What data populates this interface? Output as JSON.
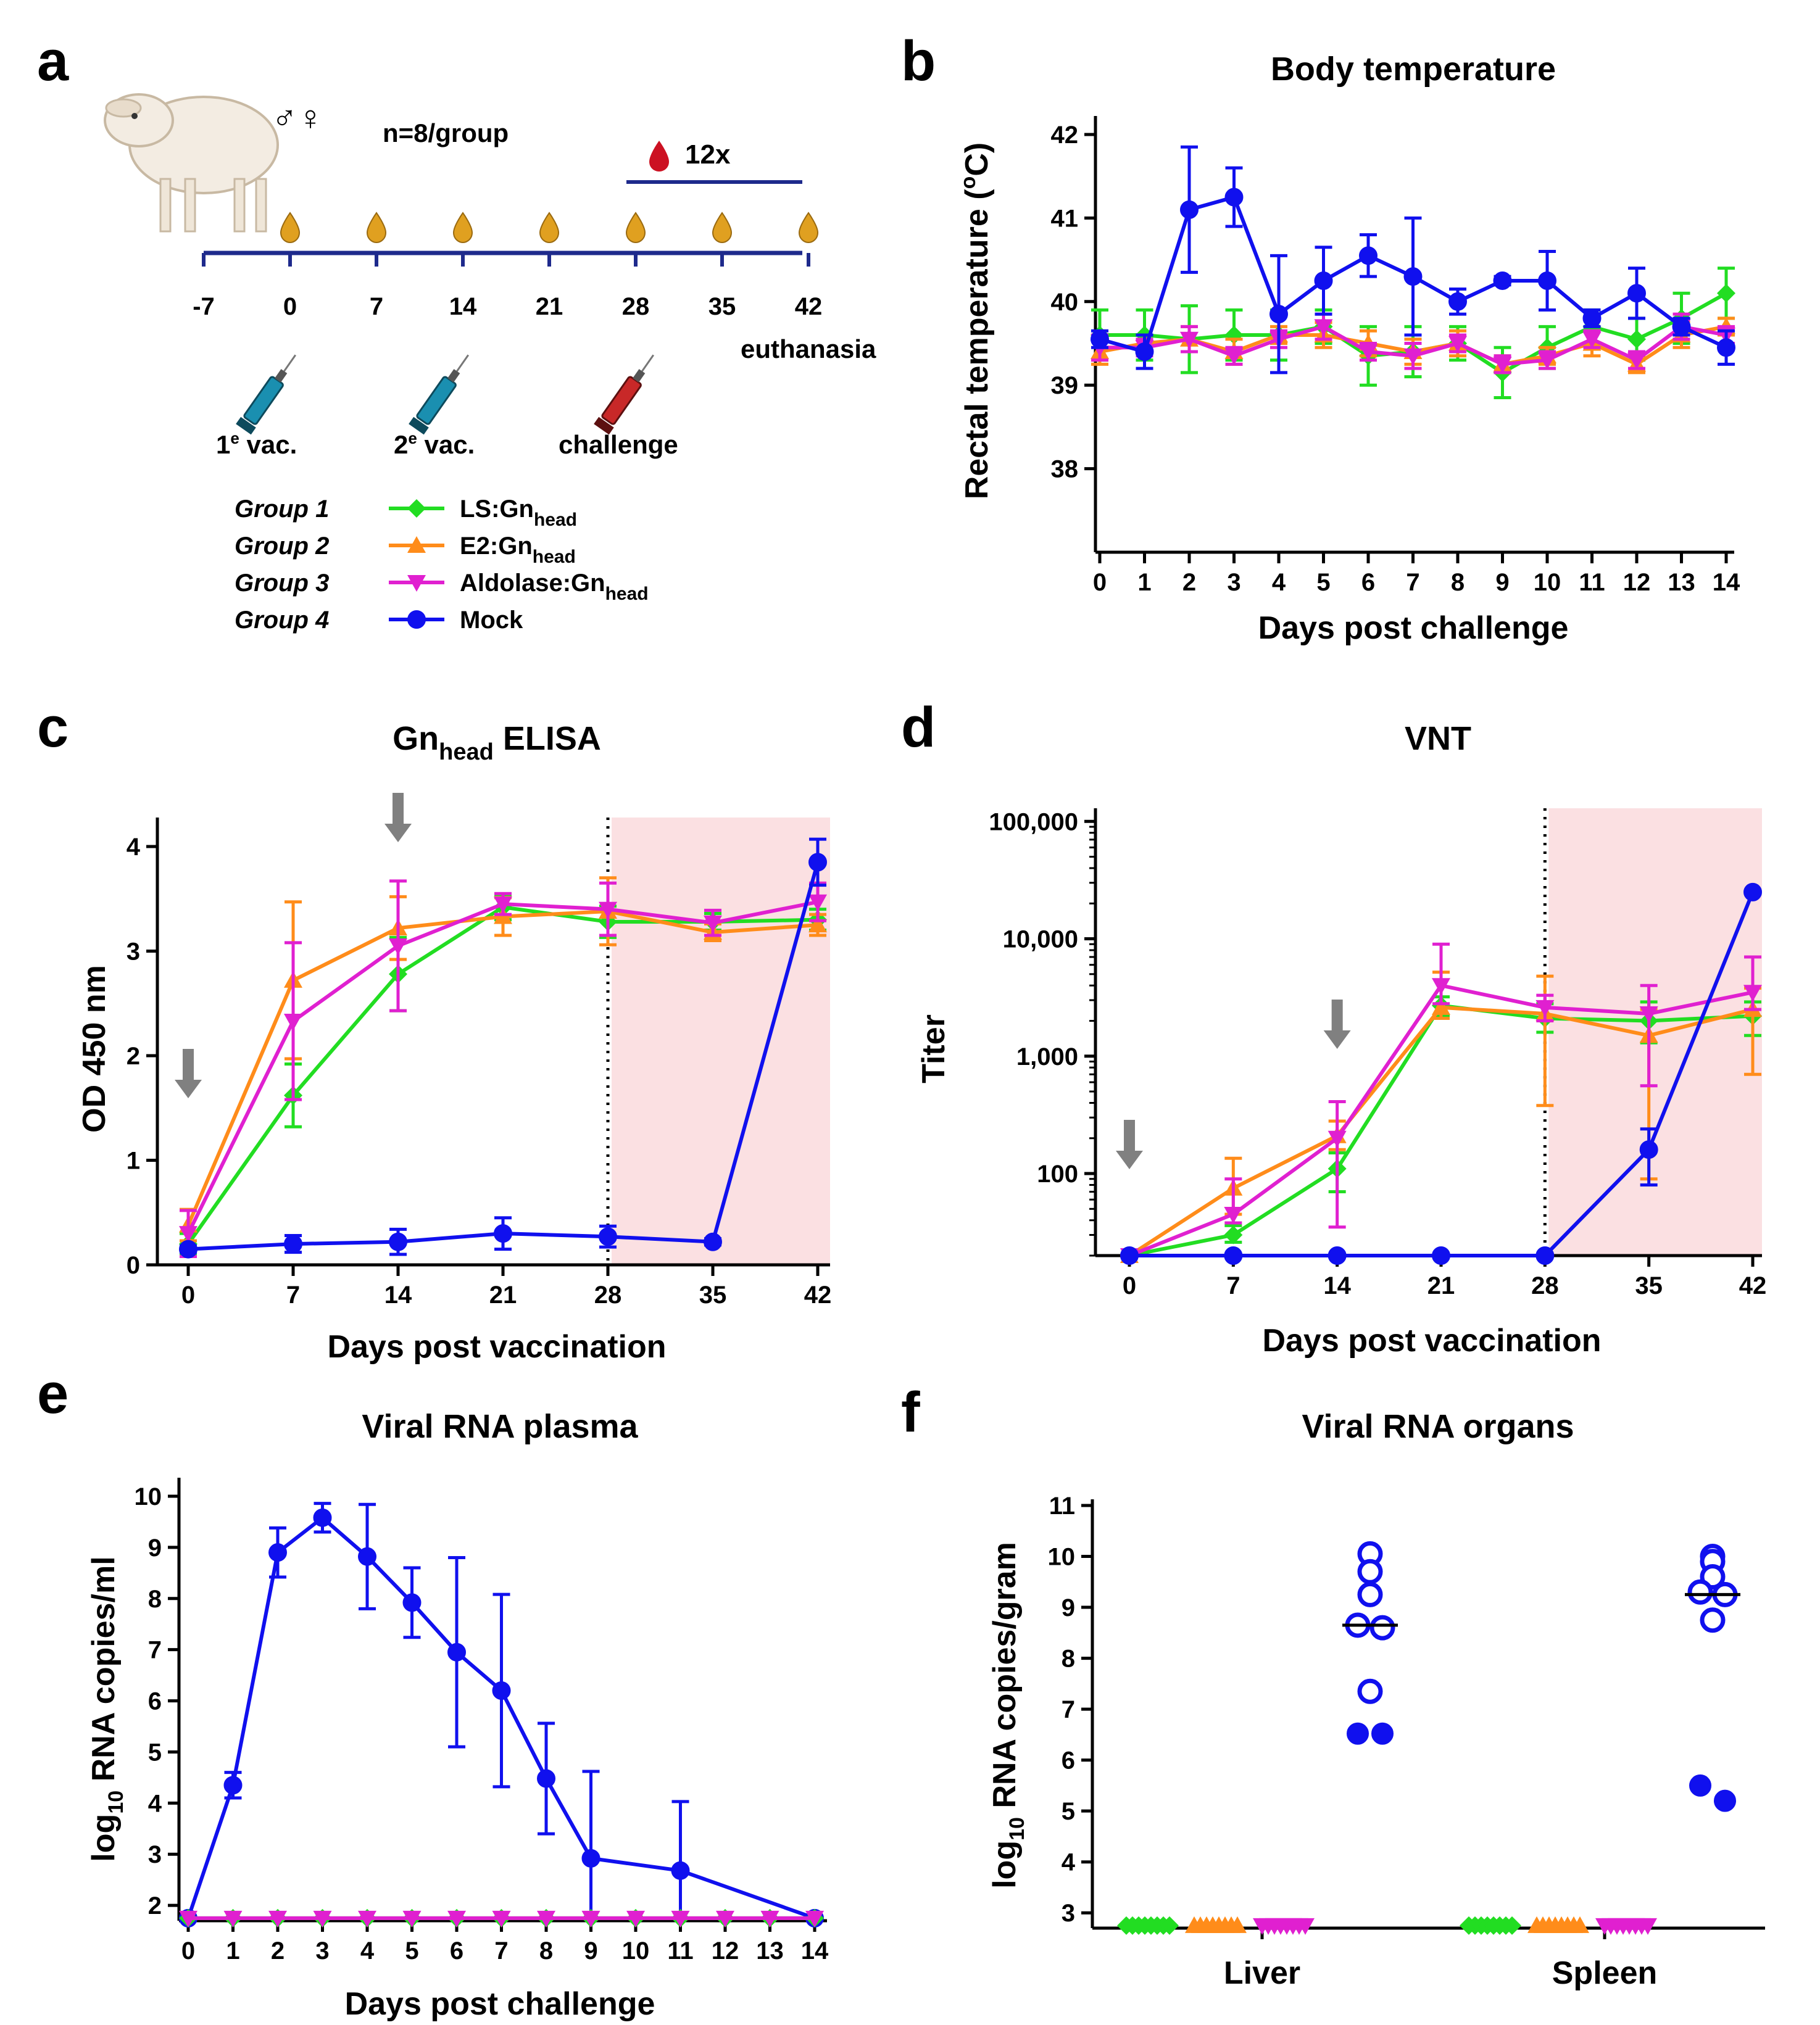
{
  "colors": {
    "ls": "#22dd22",
    "e2": "#ff8c1a",
    "ald": "#e020d0",
    "mock": "#1010ee",
    "timeline": "#1e2a8c",
    "shade": "#fbe0e2",
    "arrow": "#808080",
    "drop": "#e0a020",
    "blood": "#cc1122"
  },
  "panels": {
    "a": "a",
    "b": "b",
    "c": "c",
    "d": "d",
    "e": "e",
    "f": "f"
  },
  "schematic": {
    "sex": "♂♀",
    "n": "n=8/group",
    "blood": "12x",
    "days": [
      "-7",
      "0",
      "7",
      "14",
      "21",
      "28",
      "35",
      "42"
    ],
    "euthanasia": "euthanasia",
    "vac1_num": "1",
    "vac1_sup": "e",
    "vac1_rest": " vac.",
    "vac2_num": "2",
    "vac2_sup": "e",
    "vac2_rest": " vac.",
    "challenge": "challenge"
  },
  "legend": [
    {
      "group": "Group 1",
      "label": "LS:Gn",
      "sub": "head",
      "series": "ls"
    },
    {
      "group": "Group 2",
      "label": "E2:Gn",
      "sub": "head",
      "series": "e2"
    },
    {
      "group": "Group 3",
      "label": "Aldolase:Gn",
      "sub": "head",
      "series": "ald"
    },
    {
      "group": "Group 4",
      "label": "Mock",
      "sub": "",
      "series": "mock"
    }
  ],
  "chart_data": [
    {
      "id": "b",
      "type": "line",
      "title": "Body temperature",
      "xlabel": "Days post challenge",
      "ylabel_main": "Rectal temperature (",
      "ylabel_sup": "o",
      "ylabel_end": "C)",
      "x": [
        0,
        1,
        2,
        3,
        4,
        5,
        6,
        7,
        8,
        9,
        10,
        11,
        12,
        13,
        14
      ],
      "ylim": [
        37,
        42
      ],
      "yticks": [
        38,
        39,
        40,
        41,
        42
      ],
      "series": [
        {
          "name": "LS:Gnhead",
          "key": "ls",
          "values": [
            39.6,
            39.6,
            39.55,
            39.6,
            39.6,
            39.7,
            39.35,
            39.4,
            39.5,
            39.15,
            39.45,
            39.7,
            39.55,
            39.8,
            40.1
          ],
          "err": [
            0.3,
            0.3,
            0.4,
            0.3,
            0.3,
            0.2,
            0.35,
            0.3,
            0.2,
            0.3,
            0.25,
            0.2,
            0.25,
            0.3,
            0.3
          ]
        },
        {
          "name": "E2:Gnhead",
          "key": "e2",
          "values": [
            39.4,
            39.5,
            39.55,
            39.4,
            39.6,
            39.6,
            39.5,
            39.4,
            39.5,
            39.25,
            39.35,
            39.5,
            39.25,
            39.6,
            39.7
          ],
          "err": [
            0.15,
            0.1,
            0.15,
            0.15,
            0.1,
            0.15,
            0.15,
            0.15,
            0.15,
            0.1,
            0.1,
            0.15,
            0.1,
            0.15,
            0.1
          ]
        },
        {
          "name": "Aldolase:Gnhead",
          "key": "ald",
          "values": [
            39.45,
            39.45,
            39.55,
            39.35,
            39.55,
            39.7,
            39.4,
            39.35,
            39.5,
            39.25,
            39.3,
            39.55,
            39.3,
            39.7,
            39.6
          ],
          "err": [
            0.15,
            0.1,
            0.15,
            0.1,
            0.1,
            0.15,
            0.1,
            0.15,
            0.1,
            0.1,
            0.1,
            0.1,
            0.1,
            0.15,
            0.1
          ]
        },
        {
          "name": "Mock",
          "key": "mock",
          "values": [
            39.55,
            39.4,
            41.1,
            41.25,
            39.85,
            40.25,
            40.55,
            40.3,
            40.0,
            40.25,
            40.25,
            39.8,
            40.1,
            39.7,
            39.45
          ],
          "err": [
            0.1,
            0.2,
            0.75,
            0.35,
            0.7,
            0.4,
            0.25,
            0.7,
            0.15,
            0.05,
            0.35,
            0.1,
            0.3,
            0.1,
            0.2
          ]
        }
      ]
    },
    {
      "id": "c",
      "type": "line",
      "title_main": "Gn",
      "title_sub": "head",
      "title_end": " ELISA",
      "xlabel": "Days post vaccination",
      "ylabel": "OD 450 nm",
      "x": [
        0,
        7,
        14,
        21,
        28,
        35,
        42
      ],
      "ylim": [
        0,
        4.1
      ],
      "yticks": [
        0,
        1,
        2,
        3,
        4
      ],
      "vaccination_arrows": [
        0,
        14
      ],
      "challenge_day": 28,
      "series": [
        {
          "name": "LS:Gnhead",
          "key": "ls",
          "values": [
            0.2,
            1.62,
            2.78,
            3.42,
            3.28,
            3.28,
            3.3
          ],
          "err": [
            0.1,
            0.3,
            0.35,
            0.12,
            0.15,
            0.08,
            0.1
          ]
        },
        {
          "name": "E2:Gnhead",
          "key": "e2",
          "values": [
            0.38,
            2.72,
            3.22,
            3.33,
            3.38,
            3.18,
            3.25
          ],
          "err": [
            0.15,
            0.75,
            0.3,
            0.18,
            0.32,
            0.08,
            0.1
          ]
        },
        {
          "name": "Aldolase:Gnhead",
          "key": "ald",
          "values": [
            0.3,
            2.33,
            3.05,
            3.45,
            3.4,
            3.27,
            3.47
          ],
          "err": [
            0.22,
            0.75,
            0.62,
            0.1,
            0.25,
            0.12,
            0.18
          ]
        },
        {
          "name": "Mock",
          "key": "mock",
          "values": [
            0.15,
            0.2,
            0.22,
            0.3,
            0.27,
            0.22,
            3.85
          ],
          "err": [
            0.03,
            0.08,
            0.12,
            0.15,
            0.1,
            0.03,
            0.22
          ]
        }
      ]
    },
    {
      "id": "d",
      "type": "line",
      "scale": "log",
      "title": "VNT",
      "xlabel": "Days post vaccination",
      "ylabel": "Titer",
      "x": [
        0,
        7,
        14,
        21,
        28,
        35,
        42
      ],
      "ylim": [
        20,
        90000
      ],
      "yticks": [
        100,
        1000,
        10000,
        100000
      ],
      "ytick_labels": [
        "100",
        "1,000",
        "10,000",
        "100,000"
      ],
      "vaccination_arrows": [
        0,
        14
      ],
      "challenge_day": 28,
      "series": [
        {
          "name": "LS:Gnhead",
          "key": "ls",
          "values": [
            20,
            30,
            110,
            2700,
            2100,
            2000,
            2200
          ],
          "lo": [
            20,
            26,
            70,
            2200,
            1600,
            1300,
            1500
          ],
          "hi": [
            20,
            36,
            150,
            3200,
            2800,
            2900,
            2900
          ]
        },
        {
          "name": "E2:Gnhead",
          "key": "e2",
          "values": [
            20,
            75,
            210,
            2600,
            2300,
            1500,
            2500
          ],
          "lo": [
            20,
            45,
            160,
            2100,
            380,
            90,
            700
          ],
          "hi": [
            20,
            135,
            280,
            5200,
            4800,
            2500,
            3800
          ]
        },
        {
          "name": "Aldolase:Gnhead",
          "key": "ald",
          "values": [
            20,
            45,
            200,
            4000,
            2600,
            2300,
            3500
          ],
          "lo": [
            20,
            38,
            35,
            2800,
            2000,
            560,
            2500
          ],
          "hi": [
            20,
            90,
            410,
            9000,
            3300,
            4000,
            7000
          ]
        },
        {
          "name": "Mock",
          "key": "mock",
          "values": [
            20,
            20,
            20,
            20,
            20,
            160,
            25000
          ],
          "lo": [
            20,
            20,
            20,
            20,
            20,
            80,
            25000
          ],
          "hi": [
            20,
            20,
            20,
            20,
            20,
            240,
            25000
          ]
        }
      ]
    },
    {
      "id": "e",
      "type": "line",
      "title": "Viral RNA plasma",
      "xlabel": "Days post challenge",
      "ylabel_pre": "log",
      "ylabel_sub": "10",
      "ylabel_post": " RNA copies/ml",
      "x": [
        0,
        1,
        2,
        3,
        4,
        5,
        6,
        7,
        8,
        9,
        10,
        11,
        12,
        13,
        14
      ],
      "ylim": [
        1.7,
        10
      ],
      "yticks": [
        2,
        3,
        4,
        5,
        6,
        7,
        8,
        9,
        10
      ],
      "series": [
        {
          "name": "Mock",
          "key": "mock",
          "x": [
            0,
            1,
            2,
            3,
            4,
            5,
            6,
            7,
            8,
            9,
            11,
            14
          ],
          "values": [
            1.75,
            4.35,
            8.9,
            9.58,
            8.82,
            7.92,
            6.95,
            6.2,
            4.48,
            2.92,
            2.68,
            1.75
          ],
          "err": [
            0,
            0.25,
            0.48,
            0.28,
            1.02,
            0.68,
            1.85,
            1.88,
            1.08,
            1.7,
            1.35,
            0
          ]
        },
        {
          "name": "LS:Gnhead",
          "key": "ls",
          "x": [
            0,
            1,
            2,
            3,
            4,
            5,
            6,
            7,
            8,
            9,
            10,
            11,
            12,
            13,
            14
          ],
          "values": [
            1.75,
            1.75,
            1.75,
            1.75,
            1.75,
            1.75,
            1.75,
            1.75,
            1.75,
            1.75,
            1.75,
            1.75,
            1.75,
            1.75,
            1.75
          ]
        },
        {
          "name": "Aldolase:Gnhead",
          "key": "ald",
          "x": [
            0,
            1,
            2,
            3,
            4,
            5,
            6,
            7,
            8,
            9,
            10,
            11,
            12,
            13,
            14
          ],
          "values": [
            1.75,
            1.75,
            1.75,
            1.75,
            1.75,
            1.75,
            1.75,
            1.75,
            1.75,
            1.75,
            1.75,
            1.75,
            1.75,
            1.75,
            1.75
          ]
        }
      ]
    },
    {
      "id": "f",
      "type": "scatter",
      "title": "Viral RNA organs",
      "ylabel_pre": "log",
      "ylabel_sub": "10",
      "ylabel_post": " RNA copies/gram",
      "categories": [
        "Liver",
        "Spleen"
      ],
      "ylim": [
        2.7,
        11
      ],
      "yticks": [
        3,
        4,
        5,
        6,
        7,
        8,
        9,
        10,
        11
      ],
      "groups": [
        {
          "organ": "Liver",
          "key": "ls",
          "marker": "diamond",
          "values": [
            2.75,
            2.75,
            2.75,
            2.75,
            2.75,
            2.75,
            2.75,
            2.75
          ]
        },
        {
          "organ": "Liver",
          "key": "e2",
          "marker": "triangle-up",
          "values": [
            2.75,
            2.75,
            2.75,
            2.75,
            2.75,
            2.75,
            2.75,
            2.75
          ]
        },
        {
          "organ": "Liver",
          "key": "ald",
          "marker": "triangle-down",
          "values": [
            2.75,
            2.75,
            2.75,
            2.75,
            2.75,
            2.75,
            2.75,
            2.75
          ]
        },
        {
          "organ": "Liver",
          "key": "mock",
          "marker": "circle",
          "values": [
            10.05,
            9.7,
            9.25,
            8.65,
            8.6,
            7.35,
            6.52,
            6.52
          ],
          "open": [
            true,
            true,
            true,
            true,
            true,
            true,
            false,
            false
          ],
          "median": 8.65
        },
        {
          "organ": "Spleen",
          "key": "ls",
          "marker": "diamond",
          "values": [
            2.75,
            2.75,
            2.75,
            2.75,
            2.75,
            2.75,
            2.75,
            2.75
          ]
        },
        {
          "organ": "Spleen",
          "key": "e2",
          "marker": "triangle-up",
          "values": [
            2.75,
            2.75,
            2.75,
            2.75,
            2.75,
            2.75,
            2.75,
            2.75
          ]
        },
        {
          "organ": "Spleen",
          "key": "ald",
          "marker": "triangle-down",
          "values": [
            2.75,
            2.75,
            2.75,
            2.75,
            2.75,
            2.75,
            2.75,
            2.75
          ]
        },
        {
          "organ": "Spleen",
          "key": "mock",
          "marker": "circle",
          "values": [
            10.0,
            9.9,
            9.6,
            9.3,
            9.25,
            8.75,
            5.5,
            5.2
          ],
          "open": [
            true,
            true,
            true,
            true,
            true,
            true,
            false,
            false
          ],
          "median": 9.25
        }
      ]
    }
  ]
}
